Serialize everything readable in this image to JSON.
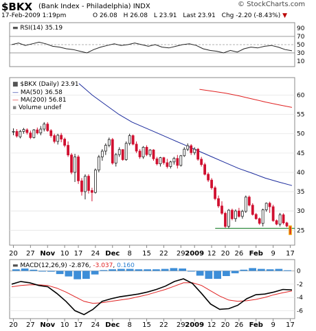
{
  "header": {
    "symbol": "$BKX",
    "name": "(Bank Index - Philadelphia)",
    "exchange": "INDX",
    "date": "17-Feb-2009 1:19pm",
    "open": "O 26.08",
    "high": "H 26.08",
    "low": "L 23.91",
    "last_label": "Last",
    "last": "23.91",
    "chg_label": "Chg",
    "chg": "-2.20 (-8.43%)",
    "brand": "© StockCharts.com"
  },
  "colors": {
    "up": "#222222",
    "down": "#d01030",
    "ma50": "#1a2a9c",
    "ma200": "#e02020",
    "macd": "#000000",
    "signal": "#e02020",
    "hist": "#3d8ed8",
    "support": "#2e8b3e",
    "last_box": "#f0a000"
  },
  "chart_data": [
    {
      "type": "line",
      "panel": "RSI",
      "label": "RSI(14) 35.19",
      "ylim": [
        0,
        100
      ],
      "y_ticks": [
        "90",
        "70",
        "50",
        "30",
        "10"
      ],
      "reference_lines": [
        70,
        50,
        30
      ],
      "x": [
        "2008-10-20",
        "2008-10-22",
        "2008-10-24",
        "2008-10-28",
        "2008-10-30",
        "2008-11-03",
        "2008-11-05",
        "2008-11-07",
        "2008-11-11",
        "2008-11-13",
        "2008-11-17",
        "2008-11-19",
        "2008-11-21",
        "2008-11-25",
        "2008-11-28",
        "2008-12-02",
        "2008-12-04",
        "2008-12-08",
        "2008-12-10",
        "2008-12-12",
        "2008-12-16",
        "2008-12-18",
        "2008-12-22",
        "2008-12-24",
        "2008-12-29",
        "2008-12-31",
        "2009-01-05",
        "2009-01-07",
        "2009-01-09",
        "2009-01-13",
        "2009-01-15",
        "2009-01-20",
        "2009-01-22",
        "2009-01-26",
        "2009-01-28",
        "2009-01-30",
        "2009-02-03",
        "2009-02-05",
        "2009-02-09",
        "2009-02-11",
        "2009-02-13",
        "2009-02-17"
      ],
      "values": [
        50,
        54,
        48,
        52,
        56,
        52,
        46,
        44,
        40,
        38,
        34,
        30,
        38,
        44,
        48,
        52,
        48,
        50,
        54,
        50,
        46,
        50,
        44,
        42,
        46,
        50,
        52,
        48,
        40,
        36,
        34,
        30,
        36,
        32,
        40,
        44,
        42,
        46,
        48,
        44,
        38,
        35.19
      ]
    },
    {
      "type": "candlestick",
      "panel": "price",
      "label": "$BKX (Daily) 23.91",
      "legend": [
        "MA(50) 36.58",
        "MA(200) 56.81",
        "Volume undef"
      ],
      "ylim": [
        21.5,
        64
      ],
      "y_ticks": [
        "60",
        "55",
        "50",
        "45",
        "40",
        "35",
        "30",
        "25"
      ],
      "support_line": 25.5,
      "dates": [
        "2008-10-20",
        "2008-10-21",
        "2008-10-22",
        "2008-10-23",
        "2008-10-24",
        "2008-10-27",
        "2008-10-28",
        "2008-10-29",
        "2008-10-30",
        "2008-10-31",
        "2008-11-03",
        "2008-11-04",
        "2008-11-05",
        "2008-11-06",
        "2008-11-07",
        "2008-11-10",
        "2008-11-11",
        "2008-11-12",
        "2008-11-13",
        "2008-11-14",
        "2008-11-17",
        "2008-11-18",
        "2008-11-19",
        "2008-11-20",
        "2008-11-21",
        "2008-11-24",
        "2008-11-25",
        "2008-11-26",
        "2008-11-28",
        "2008-12-01",
        "2008-12-02",
        "2008-12-03",
        "2008-12-04",
        "2008-12-05",
        "2008-12-08",
        "2008-12-09",
        "2008-12-10",
        "2008-12-11",
        "2008-12-12",
        "2008-12-15",
        "2008-12-16",
        "2008-12-17",
        "2008-12-18",
        "2008-12-19",
        "2008-12-22",
        "2008-12-23",
        "2008-12-24",
        "2008-12-26",
        "2008-12-29",
        "2008-12-30",
        "2008-12-31",
        "2009-01-02",
        "2009-01-05",
        "2009-01-06",
        "2009-01-07",
        "2009-01-08",
        "2009-01-09",
        "2009-01-12",
        "2009-01-13",
        "2009-01-14",
        "2009-01-15",
        "2009-01-16",
        "2009-01-20",
        "2009-01-21",
        "2009-01-22",
        "2009-01-23",
        "2009-01-26",
        "2009-01-27",
        "2009-01-28",
        "2009-01-29",
        "2009-01-30",
        "2009-02-02",
        "2009-02-03",
        "2009-02-04",
        "2009-02-05",
        "2009-02-06",
        "2009-02-09",
        "2009-02-10",
        "2009-02-11",
        "2009-02-12",
        "2009-02-13",
        "2009-02-17"
      ],
      "ohlc": [
        [
          50.5,
          51.4,
          49.6,
          50.6
        ],
        [
          50.6,
          51.2,
          49.0,
          49.4
        ],
        [
          49.2,
          51.0,
          48.8,
          50.6
        ],
        [
          50.6,
          51.5,
          50.0,
          51.1
        ],
        [
          51.0,
          51.4,
          49.8,
          50.3
        ],
        [
          50.2,
          50.8,
          48.6,
          49.0
        ],
        [
          49.0,
          51.2,
          48.8,
          51.0
        ],
        [
          51.0,
          51.6,
          49.8,
          50.2
        ],
        [
          50.2,
          52.0,
          49.6,
          51.2
        ],
        [
          51.2,
          53.0,
          50.6,
          52.5
        ],
        [
          52.5,
          53.0,
          50.5,
          50.8
        ],
        [
          50.8,
          51.2,
          49.0,
          49.5
        ],
        [
          49.5,
          50.0,
          47.5,
          48.0
        ],
        [
          48.0,
          50.0,
          47.2,
          49.6
        ],
        [
          49.6,
          50.2,
          47.8,
          48.6
        ],
        [
          48.6,
          49.0,
          46.5,
          47.0
        ],
        [
          47.0,
          48.0,
          44.0,
          44.5
        ],
        [
          44.5,
          45.0,
          39.5,
          40.0
        ],
        [
          40.0,
          44.8,
          37.5,
          44.0
        ],
        [
          44.0,
          44.5,
          37.0,
          37.8
        ],
        [
          37.8,
          38.5,
          34.0,
          35.0
        ],
        [
          35.0,
          39.5,
          33.0,
          39.0
        ],
        [
          39.0,
          39.5,
          34.5,
          35.3
        ],
        [
          35.3,
          36.0,
          32.5,
          34.8
        ],
        [
          34.8,
          41.0,
          34.5,
          40.6
        ],
        [
          40.6,
          44.5,
          40.0,
          44.0
        ],
        [
          44.0,
          46.0,
          43.0,
          45.5
        ],
        [
          45.5,
          47.5,
          44.5,
          47.0
        ],
        [
          47.0,
          49.0,
          46.5,
          48.5
        ],
        [
          48.5,
          48.9,
          42.0,
          42.4
        ],
        [
          42.4,
          45.0,
          41.5,
          44.6
        ],
        [
          44.6,
          46.5,
          44.0,
          45.9
        ],
        [
          45.9,
          46.0,
          43.0,
          43.3
        ],
        [
          43.3,
          48.0,
          43.0,
          47.5
        ],
        [
          47.5,
          50.0,
          47.0,
          49.5
        ],
        [
          49.5,
          49.8,
          47.0,
          47.3
        ],
        [
          47.3,
          48.0,
          45.0,
          45.5
        ],
        [
          45.5,
          46.0,
          43.5,
          44.0
        ],
        [
          44.0,
          46.8,
          43.5,
          46.5
        ],
        [
          46.5,
          47.0,
          44.2,
          44.6
        ],
        [
          44.6,
          46.0,
          44.0,
          45.8
        ],
        [
          45.8,
          46.0,
          43.0,
          43.5
        ],
        [
          43.5,
          44.0,
          41.8,
          42.2
        ],
        [
          42.2,
          44.0,
          41.5,
          43.8
        ],
        [
          43.8,
          44.0,
          42.0,
          42.5
        ],
        [
          42.5,
          43.5,
          41.0,
          41.5
        ],
        [
          41.5,
          43.0,
          41.0,
          42.7
        ],
        [
          42.7,
          44.0,
          42.0,
          43.6
        ],
        [
          43.6,
          44.5,
          41.0,
          41.8
        ],
        [
          41.8,
          44.5,
          41.5,
          44.3
        ],
        [
          44.3,
          46.5,
          44.0,
          46.0
        ],
        [
          46.0,
          47.5,
          45.5,
          46.9
        ],
        [
          46.9,
          47.3,
          44.5,
          45.1
        ],
        [
          45.1,
          46.5,
          44.5,
          46.0
        ],
        [
          46.0,
          46.3,
          43.0,
          43.4
        ],
        [
          43.4,
          44.0,
          41.5,
          42.0
        ],
        [
          42.0,
          42.5,
          39.2,
          39.5
        ],
        [
          39.5,
          40.0,
          37.5,
          38.0
        ],
        [
          38.0,
          38.5,
          35.5,
          36.0
        ],
        [
          36.0,
          36.5,
          32.8,
          33.2
        ],
        [
          33.2,
          34.0,
          30.8,
          31.3
        ],
        [
          31.3,
          32.5,
          29.0,
          29.4
        ],
        [
          29.4,
          29.8,
          25.6,
          26.0
        ],
        [
          26.0,
          30.5,
          25.5,
          30.2
        ],
        [
          30.2,
          30.6,
          27.6,
          28.0
        ],
        [
          28.0,
          30.4,
          27.2,
          30.0
        ],
        [
          30.0,
          30.8,
          28.3,
          28.6
        ],
        [
          28.6,
          30.3,
          28.0,
          29.9
        ],
        [
          29.9,
          34.0,
          29.5,
          33.6
        ],
        [
          33.6,
          34.0,
          31.2,
          31.5
        ],
        [
          31.5,
          32.0,
          28.8,
          29.1
        ],
        [
          29.1,
          29.5,
          27.7,
          28.0
        ],
        [
          28.0,
          28.3,
          26.4,
          26.8
        ],
        [
          26.8,
          30.6,
          26.0,
          30.3
        ],
        [
          30.3,
          32.2,
          29.8,
          32.0
        ],
        [
          32.0,
          32.4,
          29.5,
          31.1
        ],
        [
          31.1,
          31.6,
          27.2,
          27.5
        ],
        [
          27.5,
          27.8,
          26.3,
          26.6
        ],
        [
          26.6,
          29.5,
          26.0,
          29.0
        ],
        [
          29.0,
          29.4,
          26.5,
          26.9
        ],
        [
          26.9,
          27.2,
          25.8,
          26.1
        ],
        [
          26.1,
          26.1,
          23.9,
          23.91
        ]
      ],
      "ma50": [
        63.0,
        60.0,
        57.5,
        55.0,
        53.0,
        51.5,
        50.0,
        48.5,
        47.0,
        45.5,
        44.0,
        42.5,
        41.0,
        39.8,
        38.5,
        37.5,
        36.58
      ],
      "ma200": [
        61.5,
        61.0,
        60.5,
        59.8,
        59.0,
        58.2,
        57.5,
        56.81
      ]
    },
    {
      "type": "line",
      "panel": "MACD",
      "label": "MACD(12,26,9)",
      "values_label": [
        "-2.876",
        "-3.037",
        "0.160"
      ],
      "ylim": [
        -7,
        1.5
      ],
      "y_ticks": [
        "0",
        "-2",
        "-4",
        "-6"
      ],
      "series": [
        {
          "name": "MACD",
          "values": [
            -2.0,
            -1.6,
            -1.8,
            -2.2,
            -2.4,
            -3.4,
            -4.6,
            -6.0,
            -6.6,
            -5.8,
            -4.6,
            -4.2,
            -3.9,
            -3.7,
            -3.5,
            -3.2,
            -2.8,
            -2.3,
            -1.6,
            -1.2,
            -1.9,
            -3.4,
            -5.0,
            -5.8,
            -5.7,
            -5.2,
            -4.2,
            -3.6,
            -3.5,
            -3.2,
            -2.8,
            -2.876
          ]
        },
        {
          "name": "Signal",
          "values": [
            -2.4,
            -2.2,
            -2.1,
            -2.1,
            -2.2,
            -2.6,
            -3.2,
            -3.9,
            -4.6,
            -4.9,
            -4.8,
            -4.6,
            -4.4,
            -4.2,
            -3.9,
            -3.6,
            -3.2,
            -2.8,
            -2.3,
            -1.8,
            -1.8,
            -2.2,
            -3.0,
            -3.8,
            -4.4,
            -4.6,
            -4.5,
            -4.3,
            -4.0,
            -3.6,
            -3.3,
            -3.037
          ]
        },
        {
          "name": "Histogram",
          "values": [
            0.4,
            0.6,
            0.3,
            -0.1,
            -0.2,
            -0.8,
            -1.4,
            -2.1,
            -2.0,
            -0.9,
            0.2,
            0.4,
            0.5,
            0.5,
            0.4,
            0.4,
            0.4,
            0.5,
            0.7,
            0.6,
            -0.1,
            -1.2,
            -2.0,
            -2.0,
            -1.3,
            -0.6,
            0.3,
            0.7,
            0.5,
            0.4,
            0.5,
            0.16
          ]
        }
      ]
    }
  ],
  "x_axis_ticks": [
    "20",
    "27",
    "Nov",
    "10",
    "17",
    "24",
    "Dec",
    "8",
    "15",
    "22",
    "29",
    "2009",
    "12",
    "20",
    "26",
    "Feb",
    "9",
    "17"
  ]
}
